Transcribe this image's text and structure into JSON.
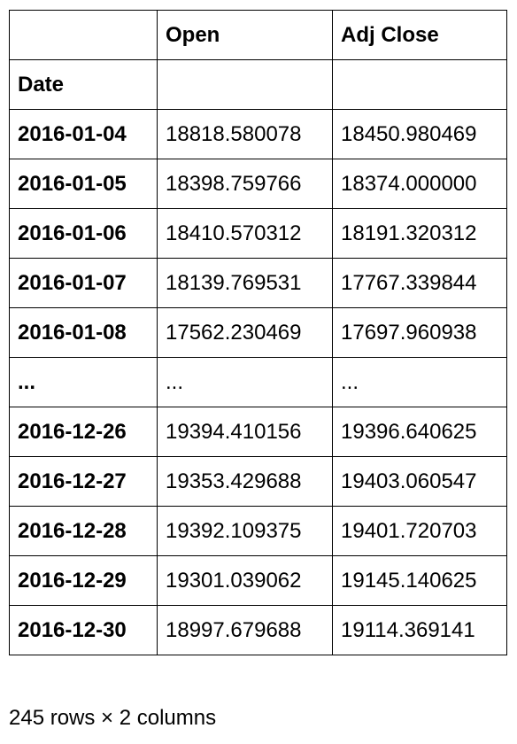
{
  "table": {
    "columns": [
      "",
      "Open",
      "Adj Close"
    ],
    "index_name": "Date",
    "rows": [
      {
        "date": "2016-01-04",
        "open": "18818.580078",
        "adj_close": "18450.980469"
      },
      {
        "date": "2016-01-05",
        "open": "18398.759766",
        "adj_close": "18374.000000"
      },
      {
        "date": "2016-01-06",
        "open": "18410.570312",
        "adj_close": "18191.320312"
      },
      {
        "date": "2016-01-07",
        "open": "18139.769531",
        "adj_close": "17767.339844"
      },
      {
        "date": "2016-01-08",
        "open": "17562.230469",
        "adj_close": "17697.960938"
      },
      {
        "date": "...",
        "open": "...",
        "adj_close": "..."
      },
      {
        "date": "2016-12-26",
        "open": "19394.410156",
        "adj_close": "19396.640625"
      },
      {
        "date": "2016-12-27",
        "open": "19353.429688",
        "adj_close": "19403.060547"
      },
      {
        "date": "2016-12-28",
        "open": "19392.109375",
        "adj_close": "19401.720703"
      },
      {
        "date": "2016-12-29",
        "open": "19301.039062",
        "adj_close": "19145.140625"
      },
      {
        "date": "2016-12-30",
        "open": "18997.679688",
        "adj_close": "19114.369141"
      }
    ]
  },
  "footer": {
    "shape_text": "245 rows × 2 columns"
  }
}
